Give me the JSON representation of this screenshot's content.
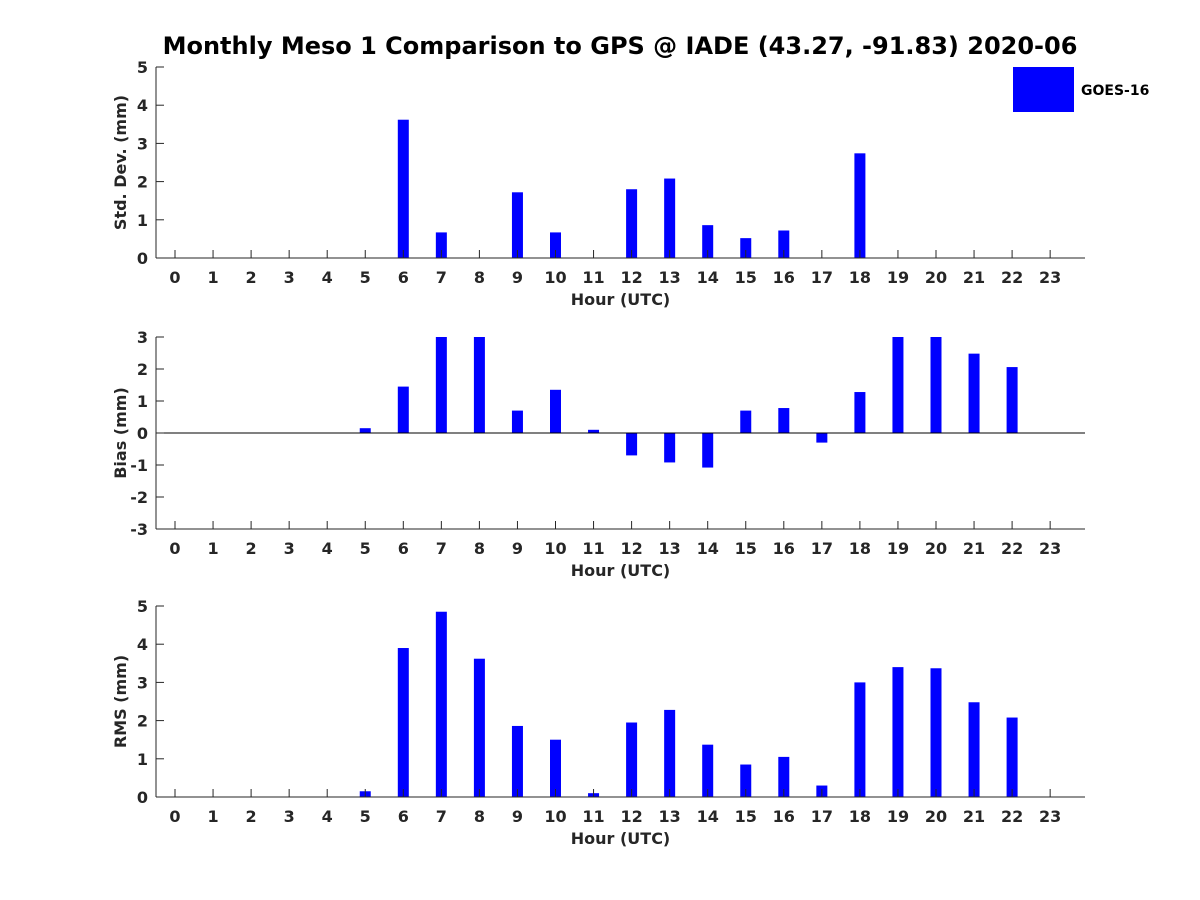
{
  "title": "Monthly Meso 1 Comparison to GPS @ IADE (43.27, -91.83) 2020-06",
  "legend": {
    "label": "GOES-16",
    "color": "#0000ff"
  },
  "colors": {
    "bar": "#0000ff",
    "axis": "#262626",
    "zero_line": "#000000"
  },
  "chart_data": [
    {
      "type": "bar",
      "xlabel": "Hour (UTC)",
      "ylabel": "Std. Dev. (mm)",
      "ylim": [
        0,
        5
      ],
      "yticks": [
        0,
        1,
        2,
        3,
        4,
        5
      ],
      "categories": [
        "0",
        "1",
        "2",
        "3",
        "4",
        "5",
        "6",
        "7",
        "8",
        "9",
        "10",
        "11",
        "12",
        "13",
        "14",
        "15",
        "16",
        "17",
        "18",
        "19",
        "20",
        "21",
        "22",
        "23"
      ],
      "series": [
        {
          "name": "GOES-16",
          "values": [
            null,
            null,
            null,
            null,
            null,
            null,
            3.62,
            0.67,
            null,
            1.72,
            0.67,
            null,
            1.8,
            2.08,
            0.86,
            0.52,
            0.72,
            null,
            2.74,
            null,
            null,
            null,
            null,
            null
          ]
        }
      ],
      "grid": false,
      "legend_position": "top-right"
    },
    {
      "type": "bar",
      "xlabel": "Hour (UTC)",
      "ylabel": "Bias (mm)",
      "ylim": [
        -3,
        3
      ],
      "yticks": [
        -3,
        -2,
        -1,
        0,
        1,
        2,
        3
      ],
      "categories": [
        "0",
        "1",
        "2",
        "3",
        "4",
        "5",
        "6",
        "7",
        "8",
        "9",
        "10",
        "11",
        "12",
        "13",
        "14",
        "15",
        "16",
        "17",
        "18",
        "19",
        "20",
        "21",
        "22",
        "23"
      ],
      "series": [
        {
          "name": "GOES-16",
          "values": [
            null,
            null,
            null,
            null,
            null,
            0.15,
            1.45,
            3.0,
            3.0,
            0.7,
            1.35,
            0.1,
            -0.7,
            -0.92,
            -1.08,
            0.7,
            0.78,
            -0.3,
            1.28,
            3.0,
            3.0,
            2.48,
            2.06,
            null
          ]
        }
      ],
      "grid": false
    },
    {
      "type": "bar",
      "xlabel": "Hour (UTC)",
      "ylabel": "RMS (mm)",
      "ylim": [
        0,
        5
      ],
      "yticks": [
        0,
        1,
        2,
        3,
        4,
        5
      ],
      "categories": [
        "0",
        "1",
        "2",
        "3",
        "4",
        "5",
        "6",
        "7",
        "8",
        "9",
        "10",
        "11",
        "12",
        "13",
        "14",
        "15",
        "16",
        "17",
        "18",
        "19",
        "20",
        "21",
        "22",
        "23"
      ],
      "series": [
        {
          "name": "GOES-16",
          "values": [
            null,
            null,
            null,
            null,
            null,
            0.15,
            3.9,
            4.85,
            3.62,
            1.86,
            1.5,
            0.1,
            1.95,
            2.28,
            1.37,
            0.85,
            1.05,
            0.3,
            3.0,
            3.4,
            3.37,
            2.48,
            2.08,
            null
          ]
        }
      ],
      "grid": false
    }
  ]
}
